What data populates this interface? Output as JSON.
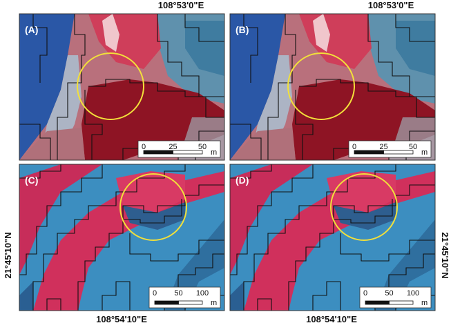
{
  "coordinates": {
    "top": "108°53'0\"E",
    "bottom": "108°54'10\"E",
    "left": "21°45'10\"N",
    "right": "21°45'10\"N"
  },
  "panels": [
    {
      "label": "(A)",
      "scale": {
        "ticks": [
          "0",
          "25",
          "50"
        ],
        "unit": "m"
      }
    },
    {
      "label": "(B)",
      "scale": {
        "ticks": [
          "0",
          "25",
          "50"
        ],
        "unit": "m"
      }
    },
    {
      "label": "(C)",
      "scale": {
        "ticks": [
          "0",
          "50",
          "100"
        ],
        "unit": "m"
      }
    },
    {
      "label": "(D)",
      "scale": {
        "ticks": [
          "0",
          "50",
          "100"
        ],
        "unit": "m"
      }
    }
  ]
}
